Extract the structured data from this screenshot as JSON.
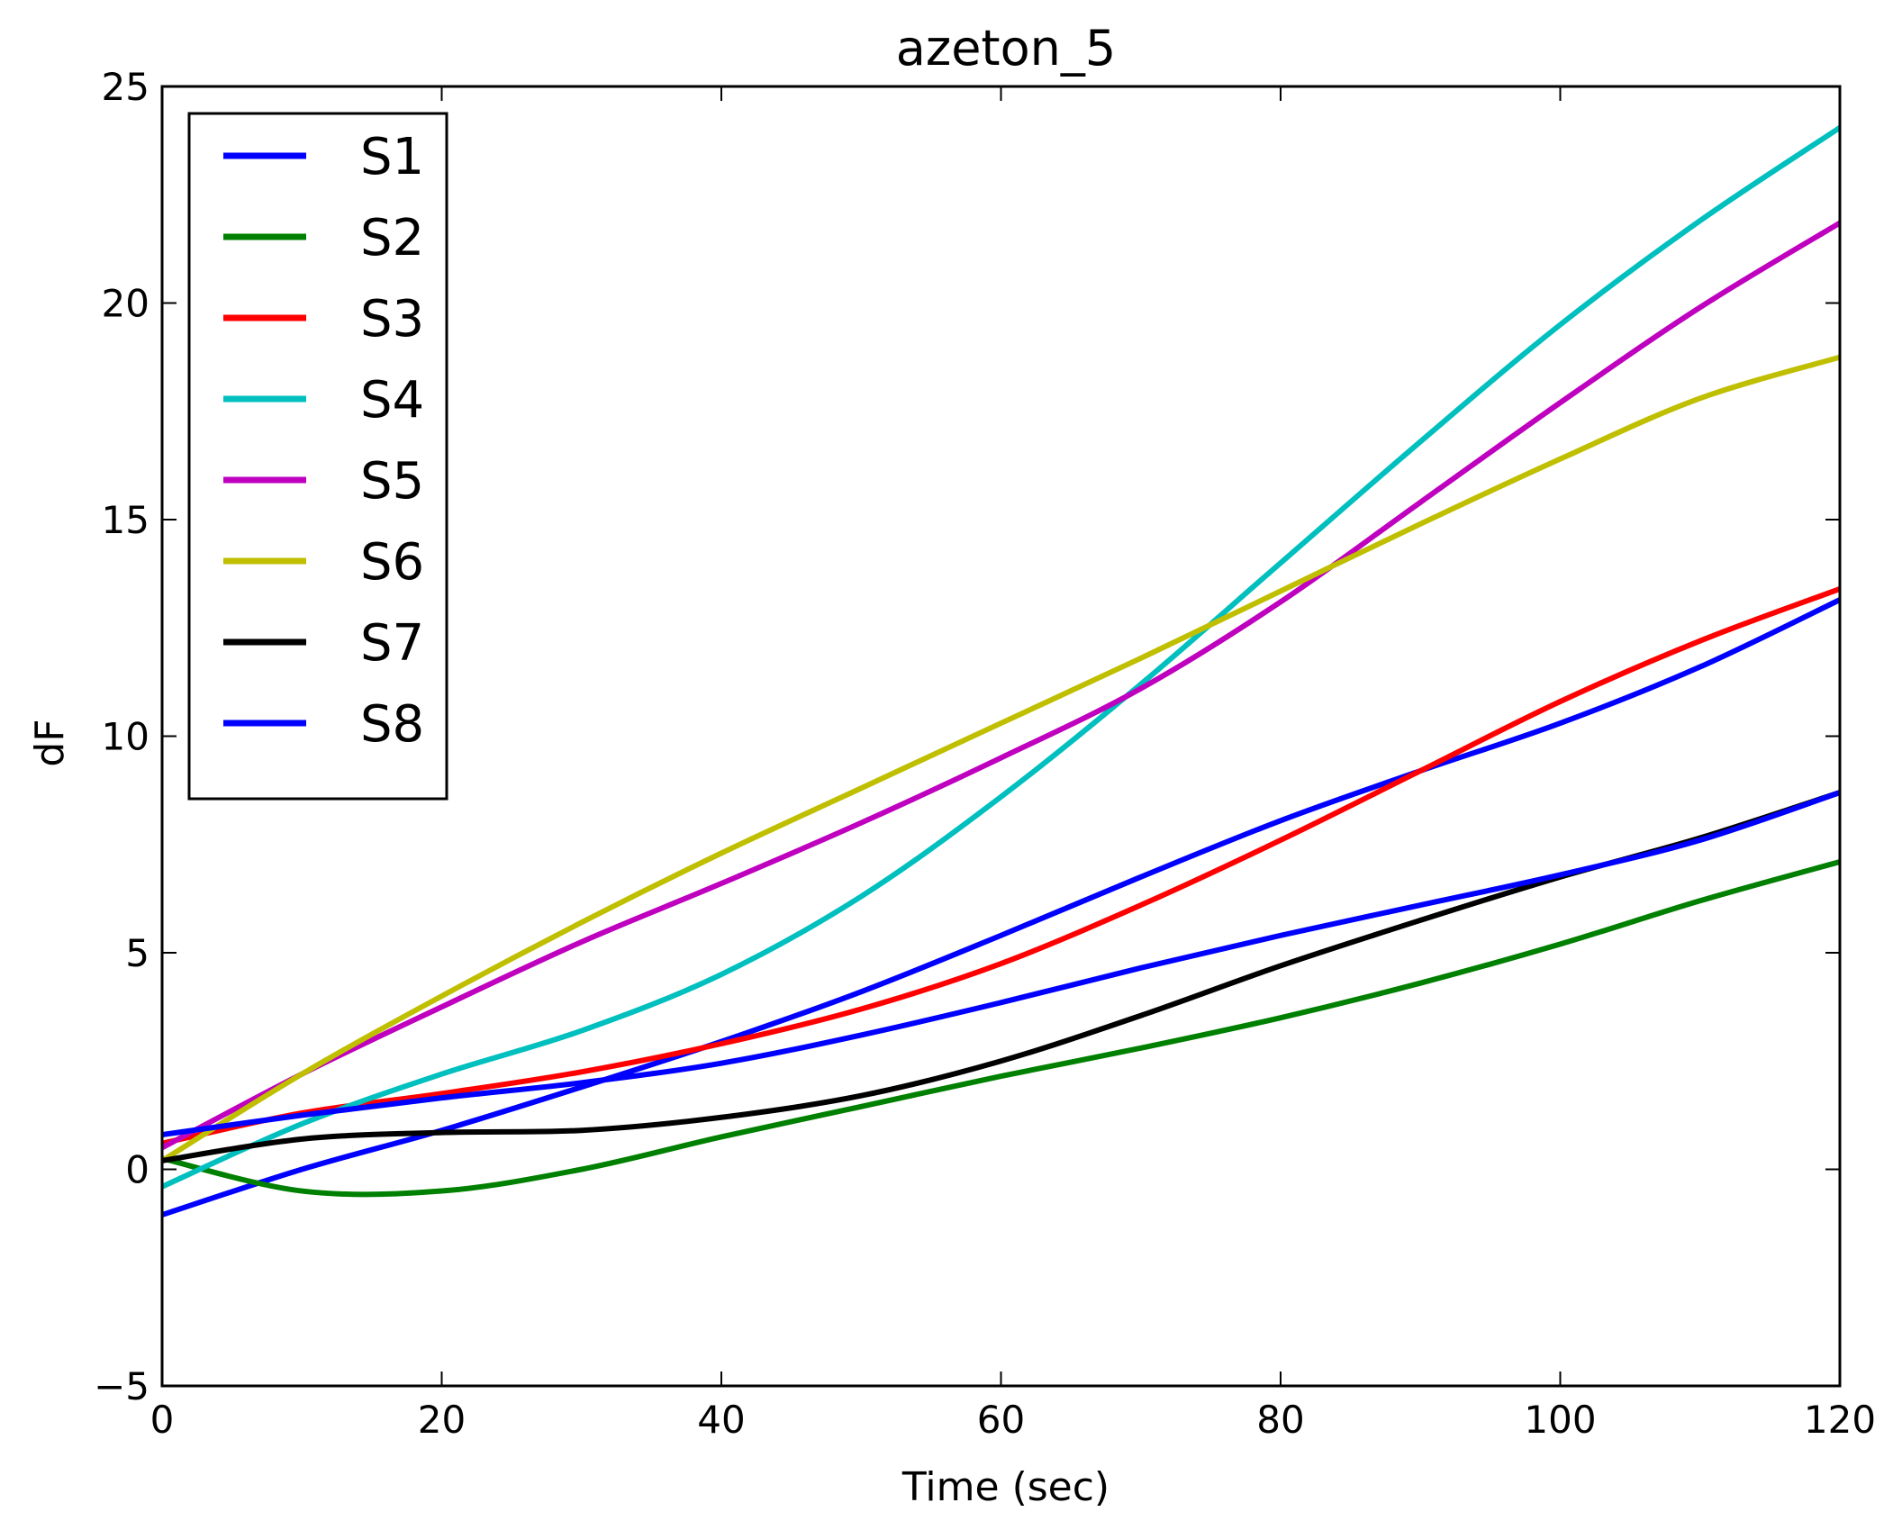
{
  "chart_data": {
    "type": "line",
    "title": "azeton_5",
    "xlabel": "Time (sec)",
    "ylabel": "dF",
    "xlim": [
      0,
      120
    ],
    "ylim": [
      -5,
      25
    ],
    "xticks": [
      0,
      20,
      40,
      60,
      80,
      100,
      120
    ],
    "yticks": [
      -5,
      0,
      5,
      10,
      15,
      20,
      25
    ],
    "xtick_labels": [
      "0",
      "20",
      "40",
      "60",
      "80",
      "100",
      "120"
    ],
    "ytick_labels": [
      "−5",
      "0",
      "5",
      "10",
      "15",
      "20",
      "25"
    ],
    "grid": false,
    "legend_position": "top-left",
    "x": [
      0,
      10,
      20,
      30,
      40,
      50,
      60,
      70,
      80,
      90,
      100,
      110,
      120
    ],
    "series": [
      {
        "name": "S1",
        "color": "#0000ff",
        "values": [
          -1.05,
          0.0,
          0.9,
          1.9,
          2.95,
          4.1,
          5.4,
          6.75,
          8.05,
          9.2,
          10.3,
          11.6,
          13.15
        ]
      },
      {
        "name": "S2",
        "color": "#008000",
        "values": [
          0.25,
          -0.5,
          -0.5,
          0.0,
          0.75,
          1.45,
          2.15,
          2.8,
          3.5,
          4.3,
          5.2,
          6.2,
          7.1
        ]
      },
      {
        "name": "S3",
        "color": "#ff0000",
        "values": [
          0.6,
          1.3,
          1.75,
          2.25,
          2.9,
          3.7,
          4.75,
          6.1,
          7.6,
          9.2,
          10.8,
          12.2,
          13.4
        ]
      },
      {
        "name": "S4",
        "color": "#00bfbf",
        "values": [
          -0.4,
          1.05,
          2.2,
          3.2,
          4.5,
          6.3,
          8.6,
          11.2,
          14.0,
          16.8,
          19.5,
          21.9,
          24.05
        ]
      },
      {
        "name": "S5",
        "color": "#bf00bf",
        "values": [
          0.5,
          2.2,
          3.75,
          5.25,
          6.6,
          8.0,
          9.5,
          11.1,
          13.1,
          15.4,
          17.7,
          19.9,
          21.85
        ]
      },
      {
        "name": "S6",
        "color": "#bfbf00",
        "values": [
          0.2,
          2.2,
          4.0,
          5.7,
          7.3,
          8.8,
          10.3,
          11.8,
          13.35,
          14.9,
          16.4,
          17.8,
          18.75
        ]
      },
      {
        "name": "S7",
        "color": "#000000",
        "values": [
          0.2,
          0.7,
          0.85,
          0.9,
          1.2,
          1.7,
          2.5,
          3.55,
          4.7,
          5.75,
          6.75,
          7.65,
          8.7
        ]
      },
      {
        "name": "S8",
        "color": "#0000ff",
        "values": [
          0.8,
          1.25,
          1.65,
          2.0,
          2.45,
          3.1,
          3.85,
          4.65,
          5.4,
          6.1,
          6.8,
          7.6,
          8.7
        ]
      }
    ]
  }
}
